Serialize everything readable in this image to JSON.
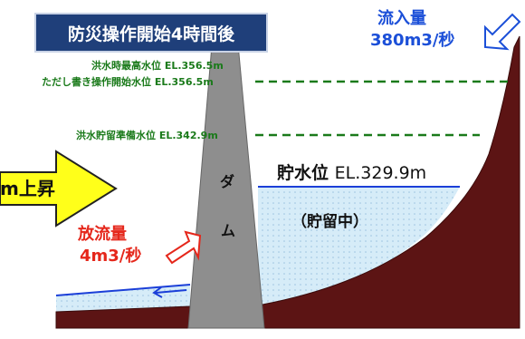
{
  "title": "防災操作開始4時間後",
  "levels": {
    "max_flood": "洪水時最高水位 EL.356.5m",
    "proviso_start": "ただし書き操作開始水位 EL.356.5m",
    "storage_prep": "洪水貯留準備水位 EL.342.9m"
  },
  "inflow": {
    "label": "流入量",
    "value": "380m3/秒"
  },
  "outflow": {
    "label": "放流量",
    "value": "4m3/秒"
  },
  "water_level": {
    "label": "貯水位",
    "value": "EL.329.9m"
  },
  "storage_status": "（貯留中）",
  "rise_arrow_text": "m上昇",
  "dam_label": [
    "ダ",
    "ム"
  ],
  "colors": {
    "title_bg": "#1f3f7a",
    "ground": "#5c1414",
    "dam": "#8e8e8e",
    "water": "#d6ecf8",
    "level_line": "#1a7a1a",
    "inflow": "#1b4fd8",
    "outflow": "#e5271b",
    "rise_arrow": "#ffff1a"
  }
}
